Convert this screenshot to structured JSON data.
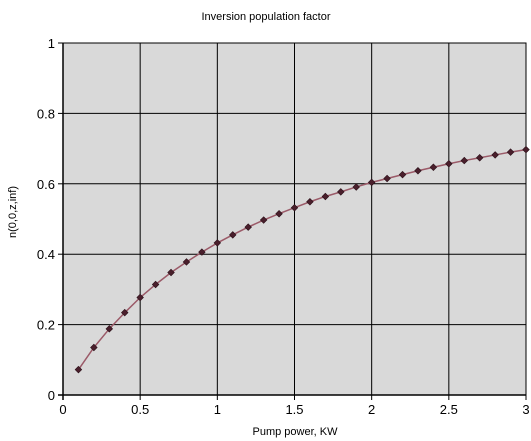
{
  "chart_data": {
    "type": "line",
    "title": "Inversion population factor",
    "xlabel": "Pump power, KW",
    "ylabel": "n(0,0,z,inf)",
    "xlim": [
      0,
      3
    ],
    "ylim": [
      0,
      1
    ],
    "x_ticks": [
      "0",
      "0.5",
      "1",
      "1.5",
      "2",
      "2.5",
      "3"
    ],
    "y_ticks": [
      "0",
      "0.2",
      "0.4",
      "0.6",
      "0.8",
      "1"
    ],
    "grid": true,
    "plot_background": "#d9d9d9",
    "line_color": "#9b5a68",
    "marker_color": "#4a1f2c",
    "series": [
      {
        "x": [
          0.1,
          0.2,
          0.3,
          0.4,
          0.5,
          0.6,
          0.7,
          0.8,
          0.9,
          1.0,
          1.1,
          1.2,
          1.3,
          1.4,
          1.5,
          1.6,
          1.7,
          1.8,
          1.9,
          2.0,
          2.1,
          2.2,
          2.3,
          2.4,
          2.5,
          2.6,
          2.7,
          2.8,
          2.9,
          3.0
        ],
        "y": [
          0.072,
          0.135,
          0.188,
          0.234,
          0.277,
          0.314,
          0.348,
          0.378,
          0.406,
          0.432,
          0.455,
          0.477,
          0.497,
          0.515,
          0.532,
          0.549,
          0.564,
          0.577,
          0.591,
          0.604,
          0.615,
          0.626,
          0.637,
          0.647,
          0.657,
          0.666,
          0.674,
          0.682,
          0.69,
          0.697
        ]
      }
    ]
  }
}
